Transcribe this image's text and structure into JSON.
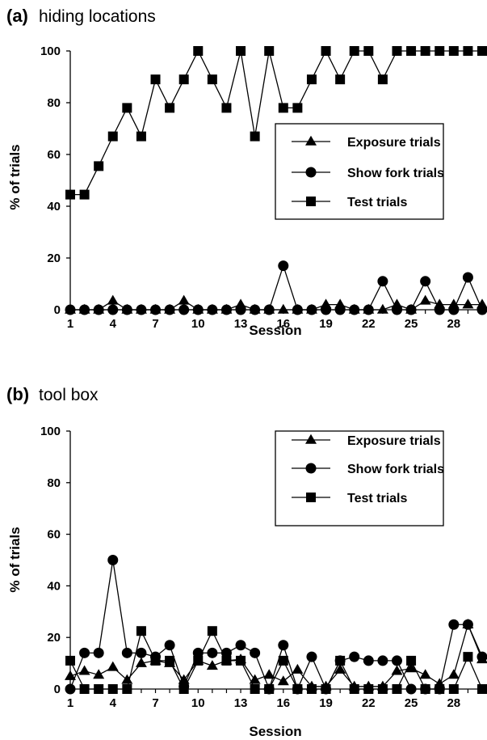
{
  "chart_data": [
    {
      "type": "line",
      "panel_label": "(a)",
      "title": "hiding locations",
      "xlabel": "Session",
      "ylabel": "% of trials",
      "xlim": [
        1,
        30
      ],
      "ylim": [
        0,
        100
      ],
      "x_ticks": [
        "1",
        "4",
        "7",
        "10",
        "13",
        "16",
        "19",
        "22",
        "25",
        "28"
      ],
      "y_ticks": [
        "0",
        "20",
        "40",
        "60",
        "80",
        "100"
      ],
      "grid": false,
      "legend_position": "right",
      "x": [
        1,
        2,
        3,
        4,
        5,
        6,
        7,
        8,
        9,
        10,
        11,
        12,
        13,
        14,
        15,
        16,
        17,
        18,
        19,
        20,
        21,
        22,
        23,
        24,
        25,
        26,
        27,
        28,
        29,
        30
      ],
      "series": [
        {
          "name": "Exposure trials",
          "marker": "triangle",
          "values": [
            0,
            0,
            0,
            3.5,
            0,
            0,
            0,
            0,
            3.5,
            0,
            0,
            0,
            2,
            0,
            0,
            0,
            0,
            0,
            2,
            2,
            0,
            0,
            0,
            2,
            0,
            3.5,
            2,
            2,
            2,
            2
          ]
        },
        {
          "name": "Show fork trials",
          "marker": "circle",
          "values": [
            0,
            0,
            0,
            0,
            0,
            0,
            0,
            0,
            0,
            0,
            0,
            0,
            0,
            0,
            0,
            17,
            0,
            0,
            0,
            0,
            0,
            0,
            11,
            0,
            0,
            11,
            0,
            0,
            12.5,
            0
          ]
        },
        {
          "name": "Test trials",
          "marker": "square",
          "values": [
            44.5,
            44.5,
            55.5,
            67,
            78,
            67,
            89,
            78,
            89,
            100,
            89,
            78,
            100,
            67,
            100,
            78,
            78,
            89,
            100,
            89,
            100,
            100,
            89,
            100,
            100,
            100,
            100,
            100,
            100,
            100
          ]
        }
      ]
    },
    {
      "type": "line",
      "panel_label": "(b)",
      "title": "tool box",
      "xlabel": "Session",
      "ylabel": "% of trials",
      "xlim": [
        1,
        30
      ],
      "ylim": [
        0,
        100
      ],
      "x_ticks": [
        "1",
        "4",
        "7",
        "10",
        "13",
        "16",
        "19",
        "22",
        "25",
        "28"
      ],
      "y_ticks": [
        "0",
        "20",
        "40",
        "60",
        "80",
        "100"
      ],
      "grid": false,
      "legend_position": "top-right",
      "x": [
        1,
        2,
        3,
        4,
        5,
        6,
        7,
        8,
        9,
        10,
        11,
        12,
        13,
        14,
        15,
        16,
        17,
        18,
        19,
        20,
        21,
        22,
        23,
        24,
        25,
        26,
        27,
        28,
        29,
        30
      ],
      "series": [
        {
          "name": "Exposure trials",
          "marker": "triangle",
          "values": [
            5,
            7,
            5.5,
            8.5,
            3.5,
            10,
            11,
            10,
            3.5,
            11,
            9,
            11,
            11.5,
            3.5,
            5.5,
            3,
            7.5,
            1,
            1,
            7.5,
            1,
            1,
            1,
            7,
            8,
            5.5,
            2,
            5.5,
            25,
            11.5
          ]
        },
        {
          "name": "Show fork trials",
          "marker": "circle",
          "values": [
            0,
            14,
            14,
            50,
            14,
            14,
            12.5,
            17,
            1,
            14,
            14,
            14,
            17,
            14,
            0,
            17,
            0,
            12.5,
            0,
            11,
            12.5,
            11,
            11,
            11,
            0,
            0,
            0,
            25,
            25,
            12.5
          ]
        },
        {
          "name": "Test trials",
          "marker": "square",
          "values": [
            11,
            0,
            0,
            0,
            0,
            22.5,
            11,
            11,
            0,
            11,
            22.5,
            11,
            11,
            0,
            0,
            11,
            0,
            0,
            0,
            11,
            0,
            0,
            0,
            0,
            11,
            0,
            0,
            0,
            12.5,
            0
          ]
        }
      ]
    }
  ]
}
